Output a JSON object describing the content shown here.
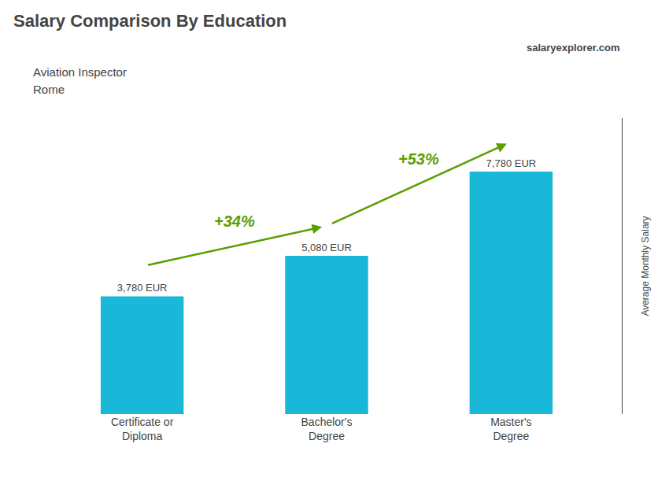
{
  "chart_data": {
    "type": "bar",
    "title": "Salary Comparison By Education",
    "subtitle": [
      "Aviation Inspector",
      "Rome"
    ],
    "source": "salaryexplorer.com",
    "ylabel": "Average Monthly Salary",
    "categories": [
      "Certificate or\nDiploma",
      "Bachelor's\nDegree",
      "Master's\nDegree"
    ],
    "values": [
      3780,
      5080,
      7780
    ],
    "value_labels": [
      "3,780 EUR",
      "5,080 EUR",
      "7,780 EUR"
    ],
    "data_labels": true,
    "annotations": [
      "+34%",
      "+53%"
    ],
    "color": "#1ab8d8",
    "ylim": [
      0,
      9500
    ],
    "yticks": [],
    "grid": false,
    "tick_labels": "x"
  }
}
